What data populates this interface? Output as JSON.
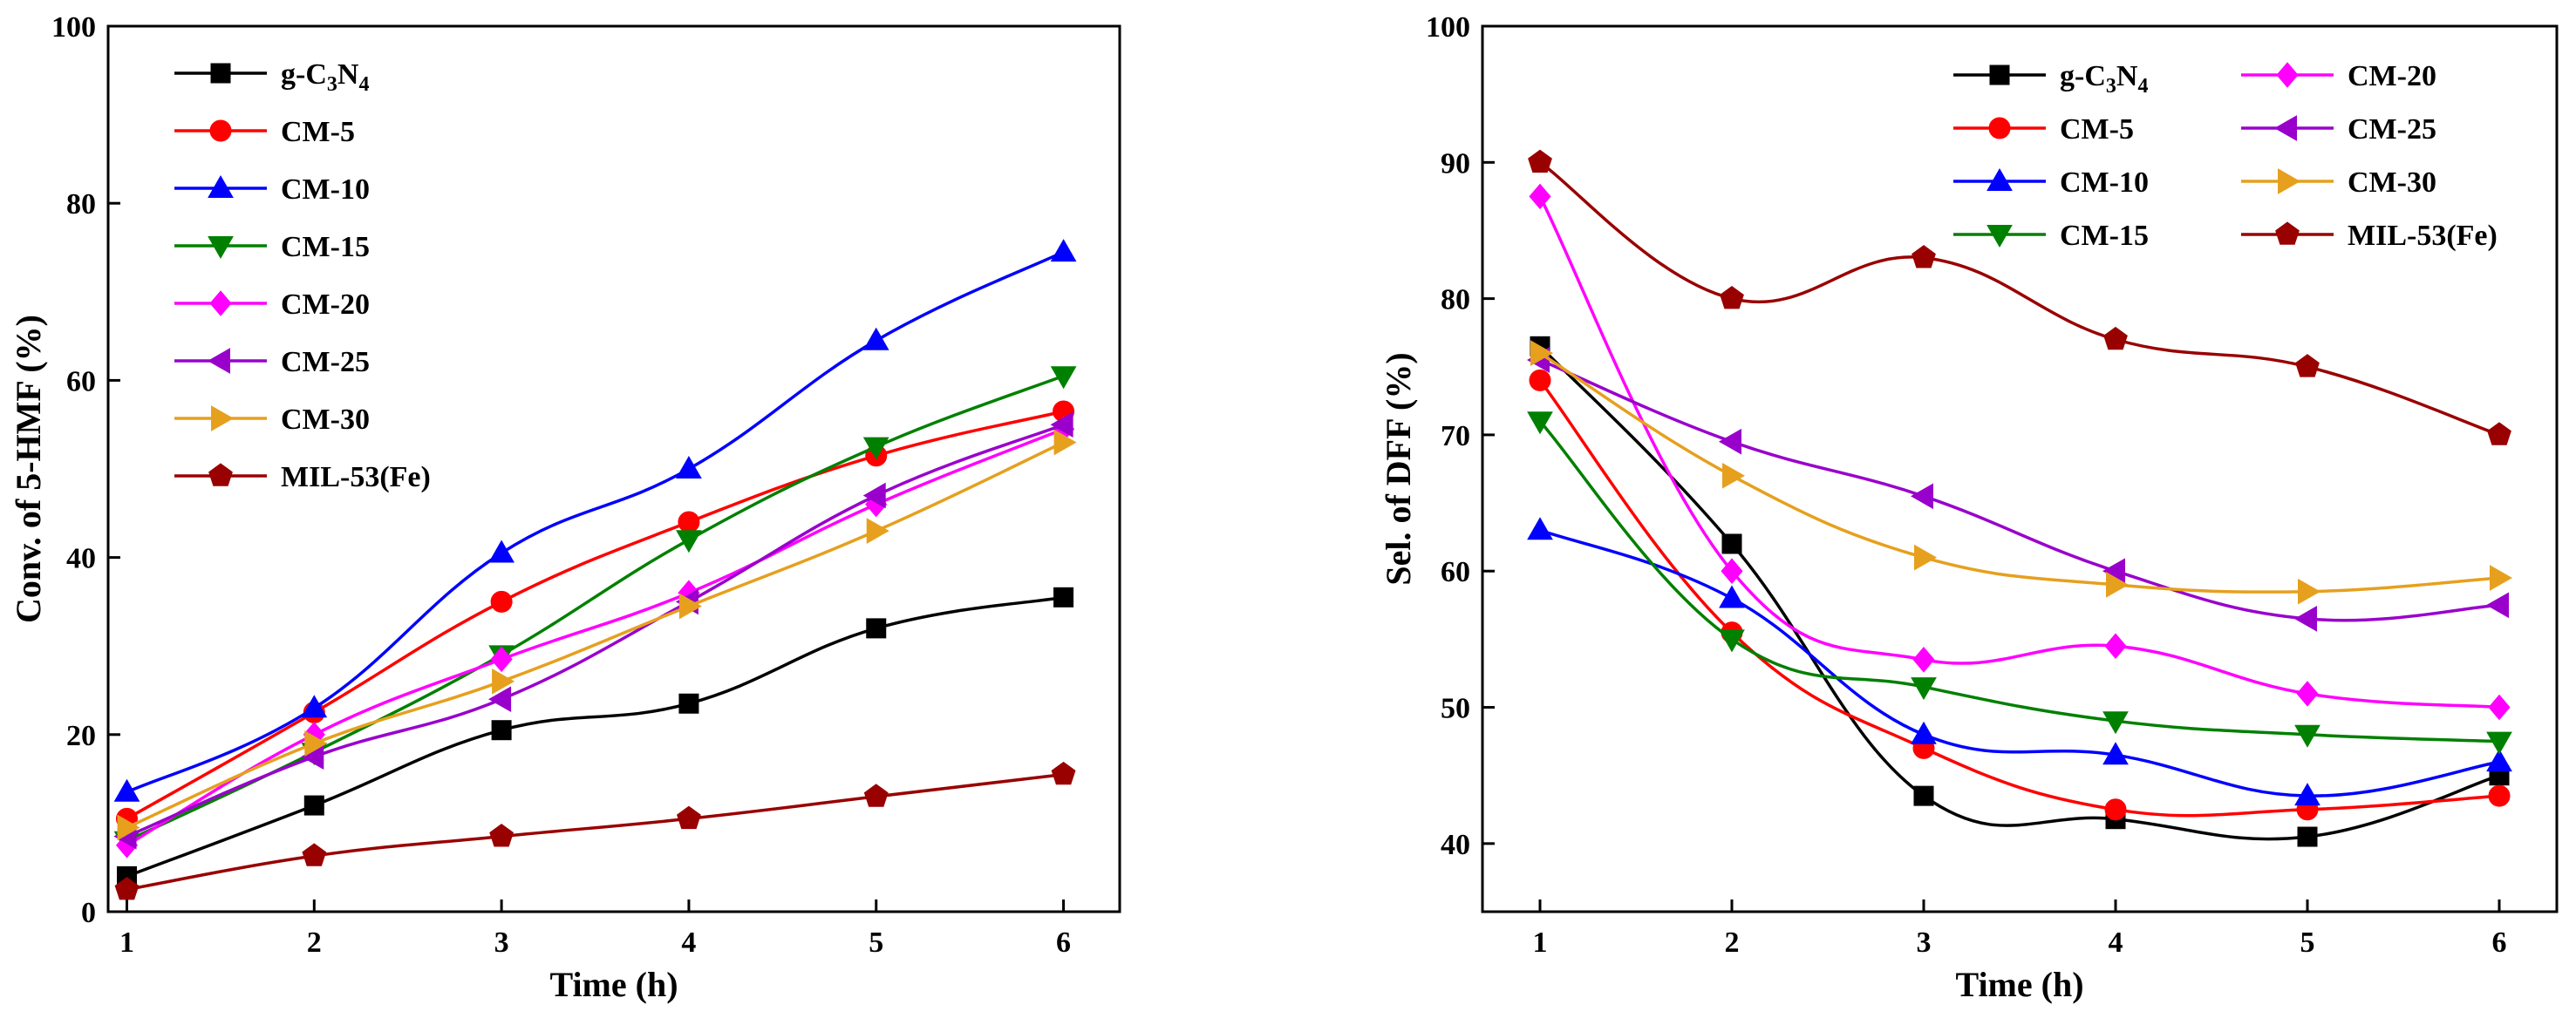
{
  "chart_data": [
    {
      "type": "line",
      "title": "",
      "xlabel": "Time (h)",
      "ylabel": "Conv. of 5-HMF (%)",
      "xlim": [
        0.9,
        6.3
      ],
      "ylim": [
        0,
        100
      ],
      "xticks": [
        1,
        2,
        3,
        4,
        5,
        6
      ],
      "yticks": [
        0,
        20,
        40,
        60,
        80,
        100
      ],
      "legend_position": "top-left",
      "x": [
        1,
        2,
        3,
        4,
        5,
        6
      ],
      "series": [
        {
          "name": "g-C3N4",
          "label_main": "g-C",
          "label_sub1": "3",
          "label_mid": "N",
          "label_sub2": "4",
          "color": "#000000",
          "marker": "square",
          "values": [
            4,
            12,
            20.5,
            23.5,
            32,
            35.5
          ]
        },
        {
          "name": "CM-5",
          "color": "#ff0000",
          "marker": "circle",
          "values": [
            10.5,
            22.5,
            35,
            44,
            51.5,
            56.5
          ]
        },
        {
          "name": "CM-10",
          "color": "#0000ff",
          "marker": "triangle-up",
          "values": [
            13.5,
            23,
            40.5,
            50,
            64.5,
            74.5
          ]
        },
        {
          "name": "CM-15",
          "color": "#008000",
          "marker": "triangle-down",
          "values": [
            8,
            18,
            29,
            42,
            52.5,
            60.5
          ]
        },
        {
          "name": "CM-20",
          "color": "#ff00ff",
          "marker": "diamond",
          "values": [
            7.5,
            20,
            28.5,
            36,
            46,
            54.5
          ]
        },
        {
          "name": "CM-25",
          "color": "#9900cc",
          "marker": "triangle-left",
          "values": [
            8.5,
            17.5,
            24,
            35,
            47,
            55
          ]
        },
        {
          "name": "CM-30",
          "color": "#e6a01e",
          "marker": "triangle-right",
          "values": [
            9.5,
            19,
            26,
            34.5,
            43,
            53
          ]
        },
        {
          "name": "MIL-53(Fe)",
          "color": "#990000",
          "marker": "pentagon",
          "values": [
            2.5,
            6.3,
            8.5,
            10.5,
            13,
            15.5
          ]
        }
      ]
    },
    {
      "type": "line",
      "title": "",
      "xlabel": "Time (h)",
      "ylabel": "Sel. of DFF (%)",
      "xlim": [
        0.7,
        6.3
      ],
      "ylim": [
        35,
        100
      ],
      "xticks": [
        1,
        2,
        3,
        4,
        5,
        6
      ],
      "yticks": [
        40,
        50,
        60,
        70,
        80,
        90,
        100
      ],
      "legend_position": "top-right",
      "x": [
        1,
        2,
        3,
        4,
        5,
        6
      ],
      "series": [
        {
          "name": "g-C3N4",
          "label_main": "g-C",
          "label_sub1": "3",
          "label_mid": "N",
          "label_sub2": "4",
          "color": "#000000",
          "marker": "square",
          "values": [
            76.5,
            62,
            43.5,
            41.8,
            40.5,
            45
          ]
        },
        {
          "name": "CM-5",
          "color": "#ff0000",
          "marker": "circle",
          "values": [
            74,
            55.5,
            47,
            42.5,
            42.5,
            43.5
          ]
        },
        {
          "name": "CM-10",
          "color": "#0000ff",
          "marker": "triangle-up",
          "values": [
            63,
            58,
            48,
            46.5,
            43.5,
            46
          ]
        },
        {
          "name": "CM-15",
          "color": "#008000",
          "marker": "triangle-down",
          "values": [
            71,
            55,
            51.5,
            49,
            48,
            47.5
          ]
        },
        {
          "name": "CM-20",
          "color": "#ff00ff",
          "marker": "diamond",
          "values": [
            87.5,
            60,
            53.5,
            54.5,
            51,
            50
          ]
        },
        {
          "name": "CM-25",
          "color": "#9900cc",
          "marker": "triangle-left",
          "values": [
            75.5,
            69.5,
            65.5,
            60,
            56.5,
            57.5
          ]
        },
        {
          "name": "CM-30",
          "color": "#e6a01e",
          "marker": "triangle-right",
          "values": [
            76,
            67,
            61,
            59,
            58.5,
            59.5
          ]
        },
        {
          "name": "MIL-53(Fe)",
          "color": "#990000",
          "marker": "pentagon",
          "values": [
            90,
            80,
            83,
            77,
            75,
            70
          ]
        }
      ]
    }
  ]
}
